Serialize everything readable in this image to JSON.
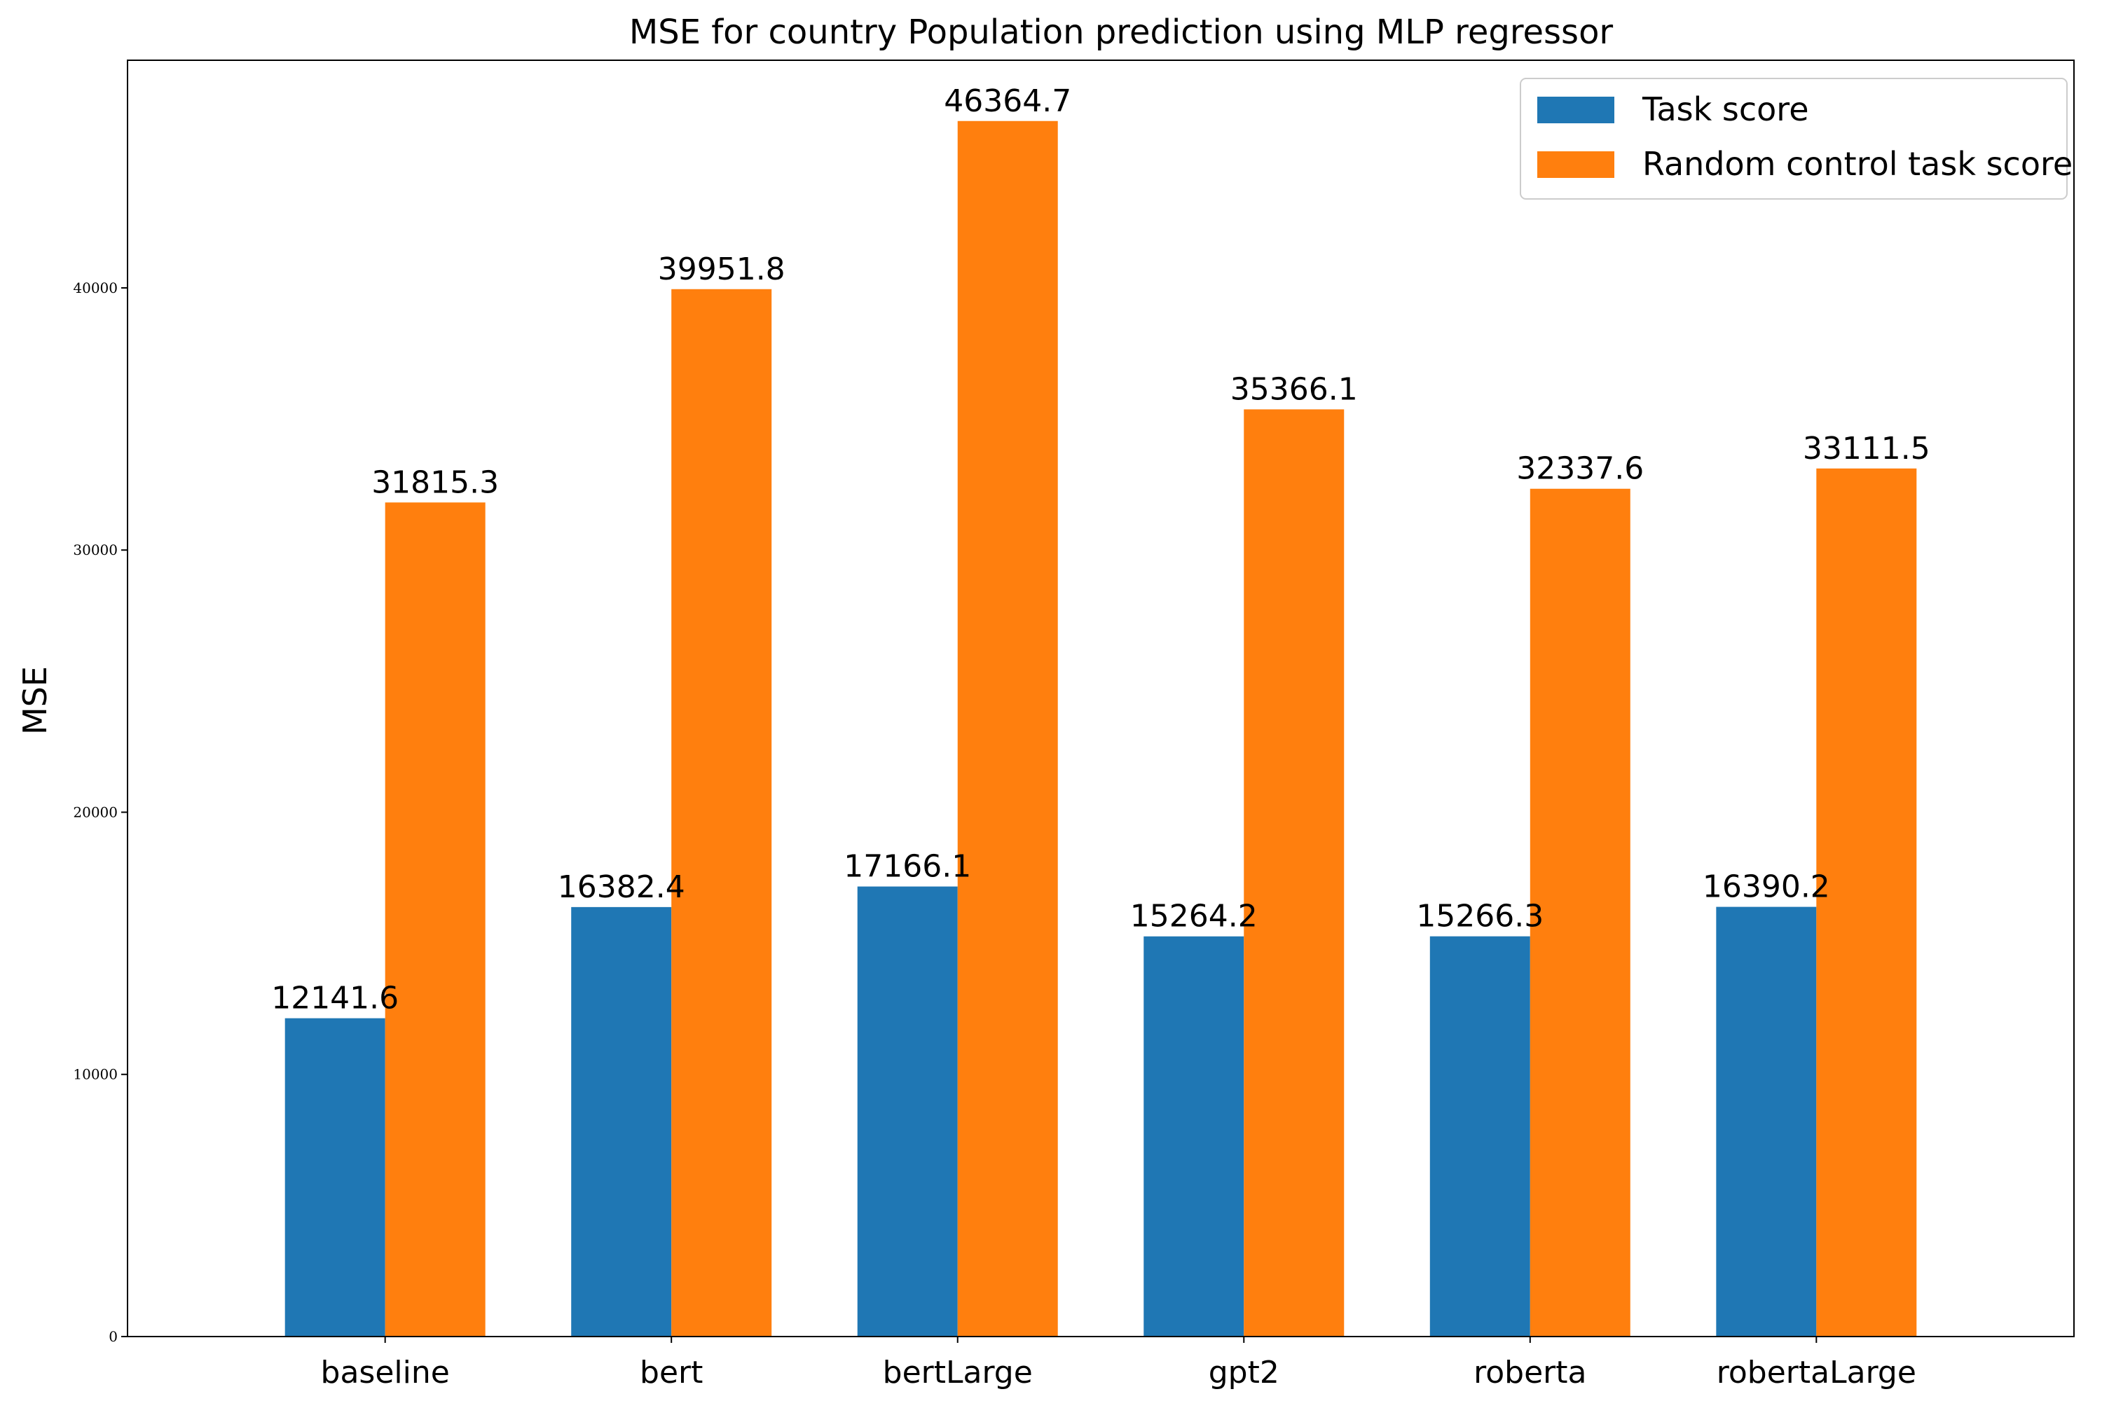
{
  "chart_data": {
    "type": "bar",
    "title": "MSE for country Population prediction using MLP regressor",
    "ylabel": "MSE",
    "xlabel": "",
    "categories": [
      "baseline",
      "bert",
      "bertLarge",
      "gpt2",
      "roberta",
      "robertaLarge"
    ],
    "series": [
      {
        "name": "Task score",
        "color": "#1f77b4",
        "values": [
          12141.6,
          16382.4,
          17166.1,
          15264.2,
          15266.3,
          16390.2
        ],
        "labels": [
          "12141.6",
          "16382.4",
          "17166.1",
          "15264.2",
          "15266.3",
          "16390.2"
        ]
      },
      {
        "name": "Random control task score",
        "color": "#ff7f0e",
        "values": [
          31815.3,
          39951.8,
          46364.7,
          35366.1,
          32337.6,
          33111.5
        ],
        "labels": [
          "31815.3",
          "39951.8",
          "46364.7",
          "35366.1",
          "32337.6",
          "33111.5"
        ]
      }
    ],
    "ylim": [
      0,
      48682.9
    ],
    "yticks": [
      0,
      10000,
      20000,
      30000,
      40000
    ],
    "ytick_labels": [
      "0",
      "10000",
      "20000",
      "30000",
      "40000"
    ],
    "legend_position": "top-right",
    "grid": false
  }
}
